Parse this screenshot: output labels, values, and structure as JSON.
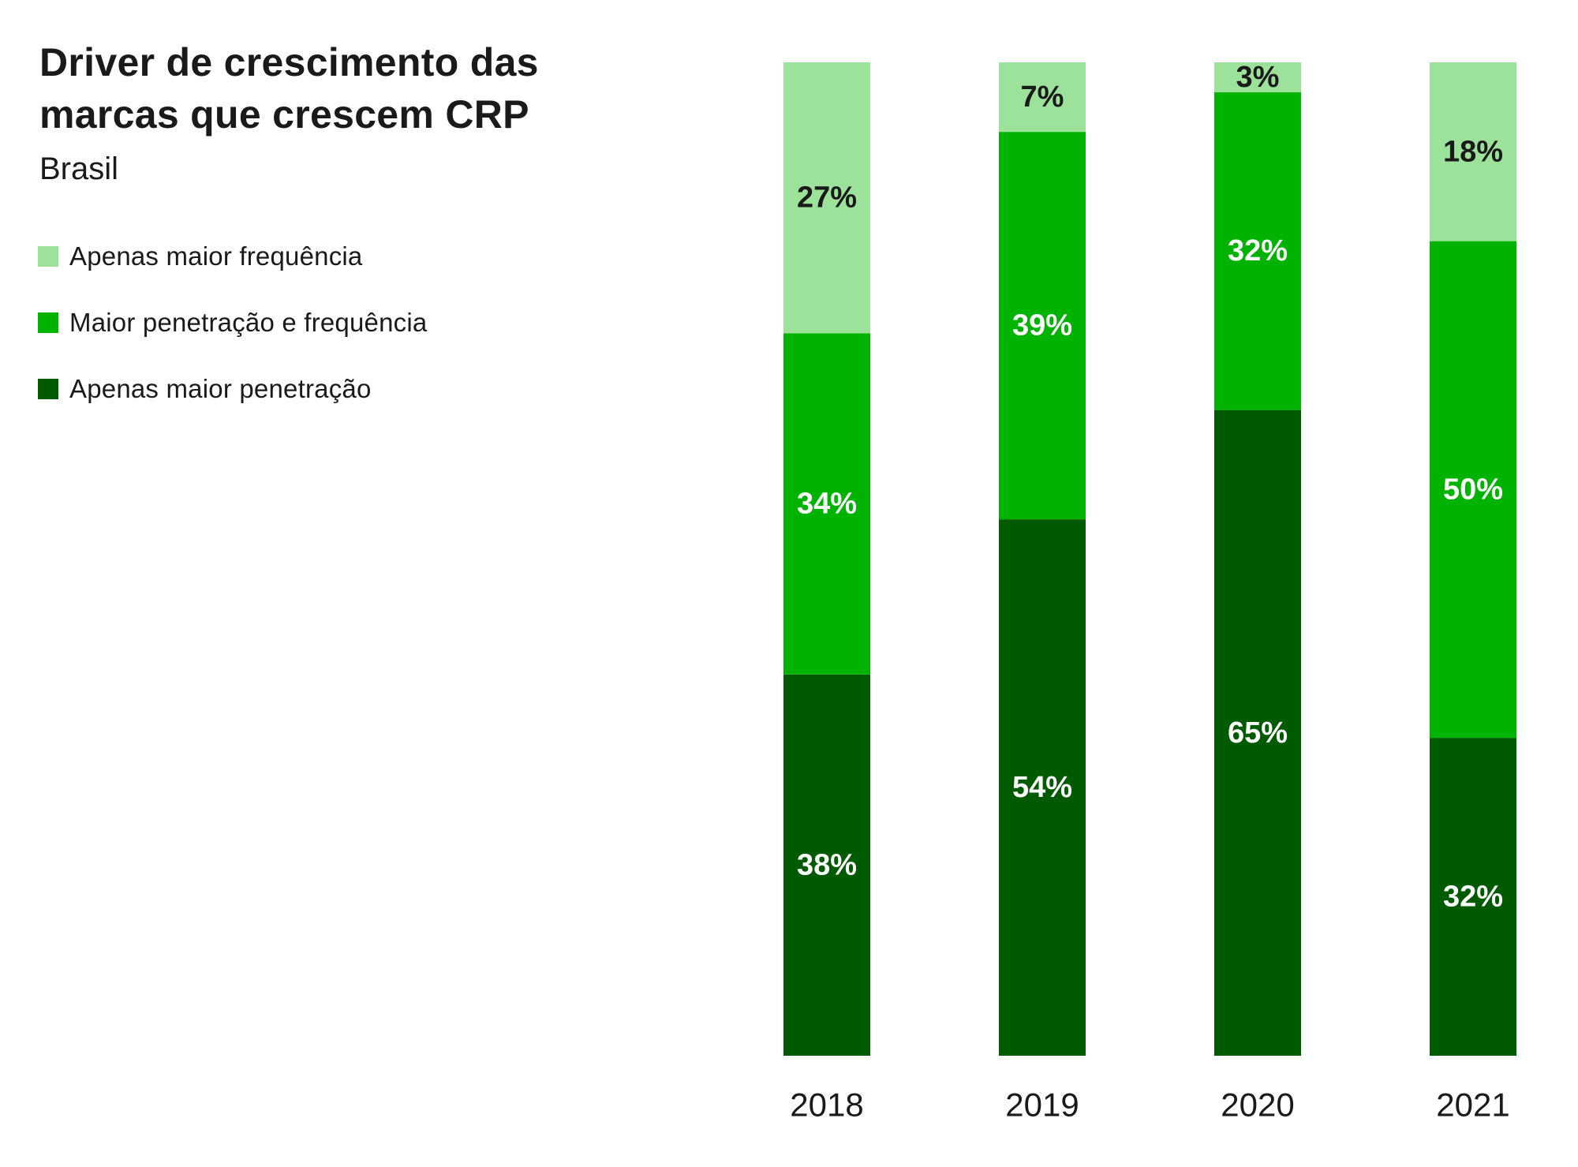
{
  "colors": {
    "light": "#9de29a",
    "mid": "#00b300",
    "dark": "#005a00",
    "label_dark": "#1a1a1a",
    "label_light": "#ffffff"
  },
  "chart_data": {
    "type": "bar",
    "stacked": true,
    "title_lines": [
      "Driver de crescimento das",
      "marcas que crescem CRP"
    ],
    "subtitle": "Brasil",
    "categories": [
      "2018",
      "2019",
      "2020",
      "2021"
    ],
    "series": [
      {
        "name": "Apenas maior penetração",
        "color": "#005a00",
        "values": [
          38,
          54,
          65,
          32
        ],
        "labels": [
          "38%",
          "54%",
          "65%",
          "32%"
        ]
      },
      {
        "name": "Maior penetração e frequência",
        "color": "#00b300",
        "values": [
          34,
          39,
          32,
          50
        ],
        "labels": [
          "34%",
          "39%",
          "32%",
          "50%"
        ]
      },
      {
        "name": "Apenas maior frequência",
        "color": "#9de29a",
        "values": [
          27,
          7,
          3,
          18
        ],
        "labels": [
          "27%",
          "7%",
          "3%",
          "18%"
        ]
      }
    ],
    "legend": [
      {
        "name": "Apenas maior frequência",
        "color": "#9de29a"
      },
      {
        "name": "Maior penetração e frequência",
        "color": "#00b300"
      },
      {
        "name": "Apenas maior penetração",
        "color": "#005a00"
      }
    ],
    "legend_position": "top-left",
    "ylim": [
      0,
      100
    ],
    "grid": false,
    "xlabel": "",
    "ylabel": ""
  }
}
